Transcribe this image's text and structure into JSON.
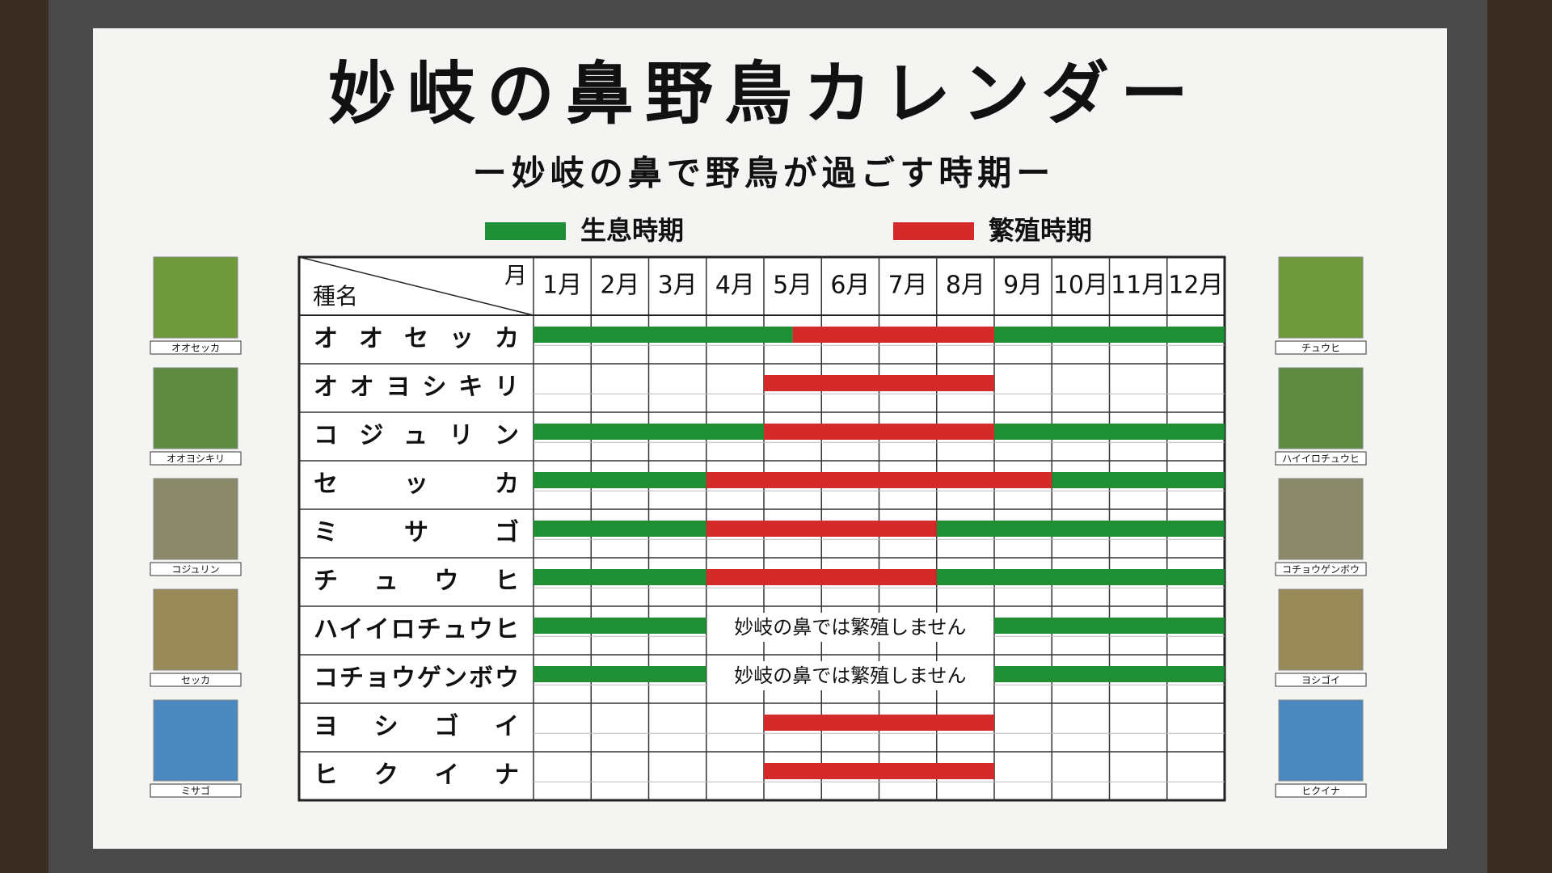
{
  "title": "妙岐の鼻野鳥カレンダー",
  "subtitle": "ー妙岐の鼻で野鳥が過ごす時期ー",
  "legend": [
    {
      "label": "生息時期",
      "color": "#1f8f35"
    },
    {
      "label": "繁殖時期",
      "color": "#d42a2a"
    }
  ],
  "table": {
    "month_header": "月",
    "species_header": "種名",
    "months": [
      "1月",
      "2月",
      "3月",
      "4月",
      "5月",
      "6月",
      "7月",
      "8月",
      "9月",
      "10月",
      "11月",
      "12月"
    ],
    "rows": [
      {
        "name": "オオセッカ",
        "habitat": [
          [
            1,
            5.5
          ],
          [
            9,
            13
          ]
        ],
        "breeding": [
          [
            5.5,
            9
          ]
        ]
      },
      {
        "name": "オオヨシキリ",
        "habitat": [],
        "breeding": [
          [
            5,
            9
          ]
        ]
      },
      {
        "name": "コジュリン",
        "habitat": [
          [
            1,
            5
          ],
          [
            9,
            13
          ]
        ],
        "breeding": [
          [
            5,
            9
          ]
        ]
      },
      {
        "name": "セッカ",
        "habitat": [
          [
            1,
            4
          ],
          [
            10,
            13
          ]
        ],
        "breeding": [
          [
            4,
            10
          ]
        ]
      },
      {
        "name": "ミサゴ",
        "habitat": [
          [
            1,
            4
          ],
          [
            8,
            13
          ]
        ],
        "breeding": [
          [
            4,
            8
          ]
        ]
      },
      {
        "name": "チュウヒ",
        "habitat": [
          [
            1,
            4
          ],
          [
            8,
            13
          ]
        ],
        "breeding": [
          [
            4,
            8
          ]
        ]
      },
      {
        "name": "ハイイロチュウヒ",
        "habitat": [
          [
            1,
            4
          ],
          [
            9,
            13
          ]
        ],
        "breeding": [],
        "note": "妙岐の鼻では繁殖しません"
      },
      {
        "name": "コチョウゲンボウ",
        "habitat": [
          [
            1,
            4
          ],
          [
            9,
            13
          ]
        ],
        "breeding": [],
        "note": "妙岐の鼻では繁殖しません"
      },
      {
        "name": "ヨシゴイ",
        "habitat": [],
        "breeding": [
          [
            5,
            9
          ]
        ]
      },
      {
        "name": "ヒクイナ",
        "habitat": [],
        "breeding": [
          [
            5,
            9
          ]
        ]
      }
    ]
  },
  "photos_left": [
    "オオセッカ",
    "オオヨシキリ",
    "コジュリン",
    "セッカ",
    "ミサゴ"
  ],
  "photos_right": [
    "チュウヒ",
    "ハイイロチュウヒ",
    "コチョウゲンボウ",
    "ヨシゴイ",
    "ヒクイナ"
  ]
}
